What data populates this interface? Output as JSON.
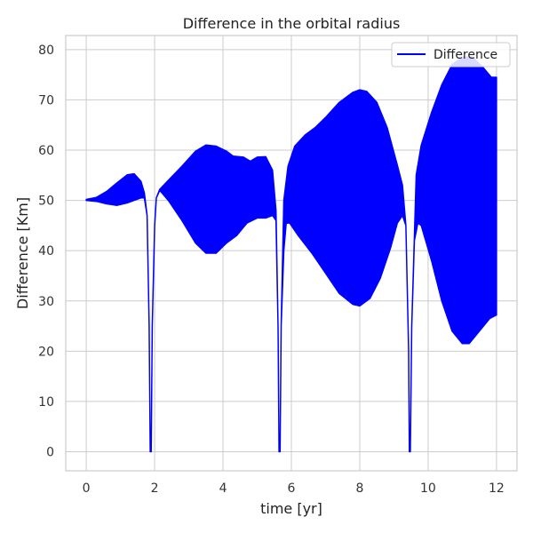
{
  "chart_data": {
    "type": "area",
    "title": "Difference in the orbital radius",
    "xlabel": "time [yr]",
    "ylabel": "Difference [Km]",
    "xlim": [
      -0.6,
      12.6
    ],
    "ylim": [
      -3.8,
      82.8
    ],
    "xticks": [
      0,
      2,
      4,
      6,
      8,
      10,
      12
    ],
    "yticks": [
      0,
      10,
      20,
      30,
      40,
      50,
      60,
      70,
      80
    ],
    "grid": true,
    "legend": {
      "placement": "top-right",
      "entries": [
        "Difference"
      ]
    },
    "colors": {
      "series": "#0000ff",
      "grid": "#cccccc",
      "frame": "#cccccc"
    },
    "series": [
      {
        "name": "Difference",
        "note_shape": "rapidly oscillating signal drawn as a filled envelope",
        "upper": [
          [
            0.0,
            50.2
          ],
          [
            0.3,
            50.6
          ],
          [
            0.6,
            51.8
          ],
          [
            0.9,
            53.5
          ],
          [
            1.2,
            55.1
          ],
          [
            1.4,
            55.3
          ],
          [
            1.6,
            53.8
          ],
          [
            1.7,
            51.5
          ],
          [
            1.78,
            47
          ],
          [
            1.84,
            25
          ],
          [
            1.87,
            0
          ],
          [
            1.9,
            0
          ],
          [
            1.93,
            25
          ],
          [
            2.0,
            45
          ],
          [
            2.05,
            50.5
          ],
          [
            2.15,
            52.2
          ],
          [
            2.4,
            54
          ],
          [
            2.8,
            56.8
          ],
          [
            3.2,
            59.8
          ],
          [
            3.5,
            61
          ],
          [
            3.8,
            60.8
          ],
          [
            4.1,
            59.8
          ],
          [
            4.3,
            58.8
          ],
          [
            4.6,
            58.6
          ],
          [
            4.8,
            57.8
          ],
          [
            5.0,
            58.6
          ],
          [
            5.25,
            58.7
          ],
          [
            5.45,
            56
          ],
          [
            5.55,
            48
          ],
          [
            5.61,
            25
          ],
          [
            5.64,
            0
          ],
          [
            5.67,
            0
          ],
          [
            5.7,
            25
          ],
          [
            5.78,
            50
          ],
          [
            5.9,
            56.8
          ],
          [
            6.1,
            60.8
          ],
          [
            6.4,
            63
          ],
          [
            6.7,
            64.5
          ],
          [
            7.0,
            66.5
          ],
          [
            7.4,
            69.5
          ],
          [
            7.8,
            71.5
          ],
          [
            8.0,
            72
          ],
          [
            8.2,
            71.7
          ],
          [
            8.5,
            69.5
          ],
          [
            8.8,
            64.5
          ],
          [
            9.1,
            57
          ],
          [
            9.25,
            53
          ],
          [
            9.35,
            45
          ],
          [
            9.43,
            20
          ],
          [
            9.45,
            0
          ],
          [
            9.48,
            0
          ],
          [
            9.52,
            25
          ],
          [
            9.65,
            55
          ],
          [
            9.8,
            61
          ],
          [
            10.1,
            67.5
          ],
          [
            10.4,
            73
          ],
          [
            10.7,
            77
          ],
          [
            11.0,
            78.5
          ],
          [
            11.3,
            78.5
          ],
          [
            11.6,
            76.5
          ],
          [
            11.85,
            74.5
          ],
          [
            12.0,
            74.5
          ]
        ],
        "lower": [
          [
            0.0,
            50.0
          ],
          [
            0.3,
            49.8
          ],
          [
            0.6,
            49.3
          ],
          [
            0.9,
            49.0
          ],
          [
            1.2,
            49.5
          ],
          [
            1.4,
            50.0
          ],
          [
            1.6,
            50.5
          ],
          [
            1.7,
            50.5
          ],
          [
            1.78,
            47
          ],
          [
            1.84,
            25
          ],
          [
            1.87,
            0
          ],
          [
            1.9,
            0
          ],
          [
            1.93,
            25
          ],
          [
            2.0,
            45
          ],
          [
            2.05,
            50.5
          ],
          [
            2.15,
            52
          ],
          [
            2.4,
            50
          ],
          [
            2.8,
            46
          ],
          [
            3.2,
            41.5
          ],
          [
            3.5,
            39.5
          ],
          [
            3.8,
            39.5
          ],
          [
            4.1,
            41.5
          ],
          [
            4.4,
            43
          ],
          [
            4.7,
            45.5
          ],
          [
            5.0,
            46.5
          ],
          [
            5.25,
            46.5
          ],
          [
            5.45,
            47
          ],
          [
            5.55,
            46
          ],
          [
            5.61,
            25
          ],
          [
            5.64,
            0
          ],
          [
            5.67,
            0
          ],
          [
            5.7,
            25
          ],
          [
            5.78,
            40
          ],
          [
            5.85,
            45.5
          ],
          [
            5.95,
            45.5
          ],
          [
            6.2,
            43
          ],
          [
            6.6,
            39.5
          ],
          [
            7.0,
            35.5
          ],
          [
            7.4,
            31.5
          ],
          [
            7.8,
            29.3
          ],
          [
            8.0,
            29
          ],
          [
            8.3,
            30.5
          ],
          [
            8.6,
            34.5
          ],
          [
            8.9,
            40.5
          ],
          [
            9.1,
            45.5
          ],
          [
            9.25,
            47
          ],
          [
            9.35,
            45
          ],
          [
            9.43,
            20
          ],
          [
            9.45,
            0
          ],
          [
            9.48,
            0
          ],
          [
            9.52,
            25
          ],
          [
            9.6,
            42
          ],
          [
            9.7,
            45.5
          ],
          [
            9.8,
            45
          ],
          [
            10.1,
            38
          ],
          [
            10.4,
            30
          ],
          [
            10.7,
            24
          ],
          [
            11.0,
            21.5
          ],
          [
            11.2,
            21.5
          ],
          [
            11.5,
            24
          ],
          [
            11.8,
            26.5
          ],
          [
            12.0,
            27.2
          ]
        ]
      }
    ]
  }
}
